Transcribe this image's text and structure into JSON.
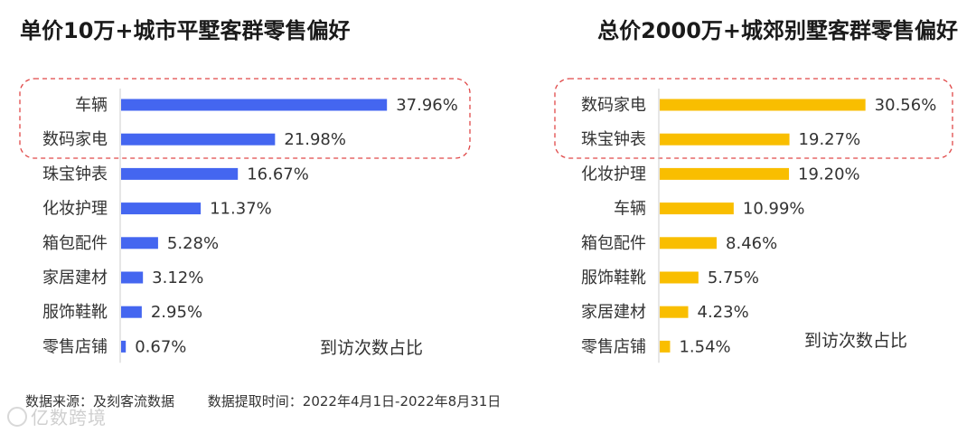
{
  "chart_data": [
    {
      "type": "bar",
      "orientation": "horizontal",
      "title": "单价10万+城市平墅客群零售偏好",
      "annotation": "到访次数占比",
      "categories": [
        "车辆",
        "数码家电",
        "珠宝钟表",
        "化妆护理",
        "箱包配件",
        "家居建材",
        "服饰鞋靴",
        "零售店铺"
      ],
      "values": [
        37.96,
        21.98,
        16.67,
        11.37,
        5.28,
        3.12,
        2.95,
        0.67
      ],
      "value_labels": [
        "37.96%",
        "21.98%",
        "16.67%",
        "11.37%",
        "5.28%",
        "3.12%",
        "2.95%",
        "0.67%"
      ],
      "unit": "%",
      "color": "#4466f0",
      "highlighted_top": 2
    },
    {
      "type": "bar",
      "orientation": "horizontal",
      "title": "总价2000万+城郊别墅客群零售偏好",
      "annotation": "到访次数占比",
      "categories": [
        "数码家电",
        "珠宝钟表",
        "化妆护理",
        "车辆",
        "箱包配件",
        "服饰鞋靴",
        "家居建材",
        "零售店铺"
      ],
      "values": [
        30.56,
        19.27,
        19.2,
        10.99,
        8.46,
        5.75,
        4.23,
        1.54
      ],
      "value_labels": [
        "30.56%",
        "19.27%",
        "19.20%",
        "10.99%",
        "8.46%",
        "5.75%",
        "4.23%",
        "1.54%"
      ],
      "unit": "%",
      "color": "#f9be00",
      "highlighted_top": 2
    }
  ],
  "footer": {
    "source": "数据来源：及刻客流数据",
    "period": "数据提取时间：2022年4月1日-2022年8月31日"
  },
  "watermark": "亿数跨境"
}
